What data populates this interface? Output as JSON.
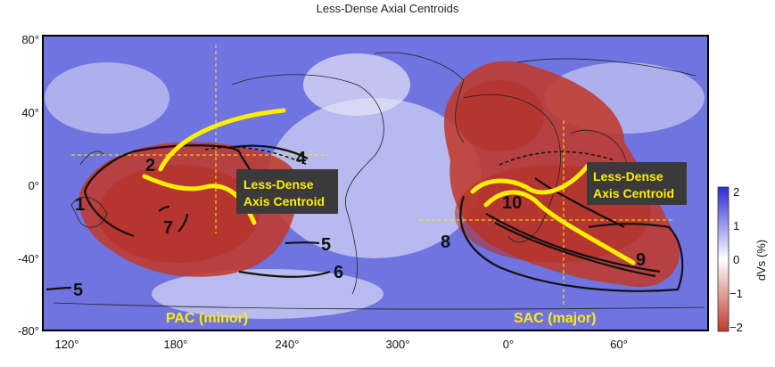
{
  "title": "Less-Dense Axial Centroids",
  "lat_ticks": [
    "80°",
    "40°",
    "0°",
    "-40°",
    "-80°"
  ],
  "lon_ticks": [
    "120°",
    "180°",
    "240°",
    "300°",
    "0°",
    "60°"
  ],
  "colorbar": {
    "label": "dVs (%)",
    "ticks": [
      "2",
      "1",
      "0",
      "−1",
      "−2"
    ],
    "color_high": "#2b2bd6",
    "color_mid": "#ffffff",
    "color_low": "#c0392b"
  },
  "annotations": {
    "pac_box": "Less-Dense\nAxis Centroid",
    "sac_box": "Less-Dense\nAxis Centroid",
    "pac_label": "PAC (minor)",
    "sac_label": "SAC (major)"
  },
  "boundary_numbers": [
    "1",
    "2",
    "4",
    "5",
    "5",
    "6",
    "7",
    "8",
    "9",
    "10"
  ],
  "colors": {
    "centroid_line": "#ffee00",
    "label_box": "#3a3a3a",
    "label_text": "#ffee00"
  }
}
